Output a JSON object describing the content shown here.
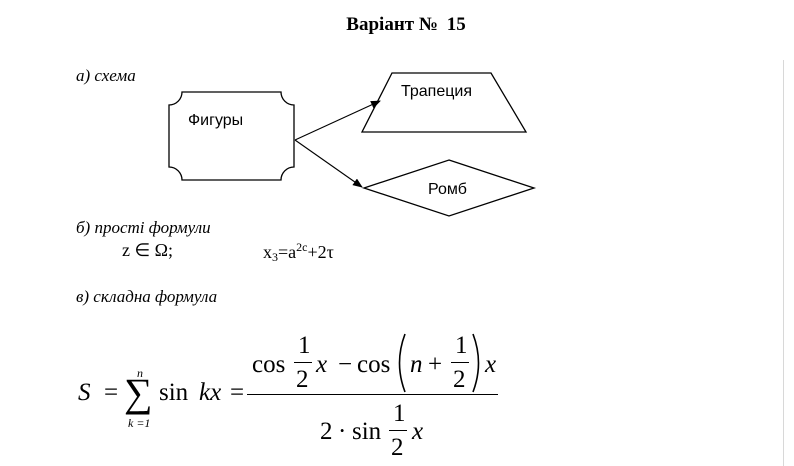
{
  "title": {
    "variant_label": "Варіант №",
    "variant_number": "15"
  },
  "section_a": {
    "label": "а) схема",
    "nodes": {
      "figures": "Фигуры",
      "trapezoid": "Трапеция",
      "rhombus": "Ромб"
    }
  },
  "section_b": {
    "label": "б) прості формули",
    "formula1": "z ∈ Ω;",
    "formula2": {
      "base": "x",
      "sub": "3",
      "eq": "=a",
      "sup": "2c",
      "tail": "+2τ"
    }
  },
  "section_c": {
    "label": "в) складна формула",
    "formula": {
      "lhs": "S",
      "eq1": "=",
      "sum_symbol": "∑",
      "sum_upper": "n",
      "sum_lower": "k =1",
      "sin_word": "sin",
      "kx": "kx",
      "eq2": "=",
      "cos1": "cos",
      "half_num": "1",
      "half_den": "2",
      "x": "x",
      "minus": "−",
      "cos2": "cos",
      "n": "n",
      "plus": "+",
      "two": "2",
      "dot": "·",
      "sin2": "sin"
    }
  }
}
